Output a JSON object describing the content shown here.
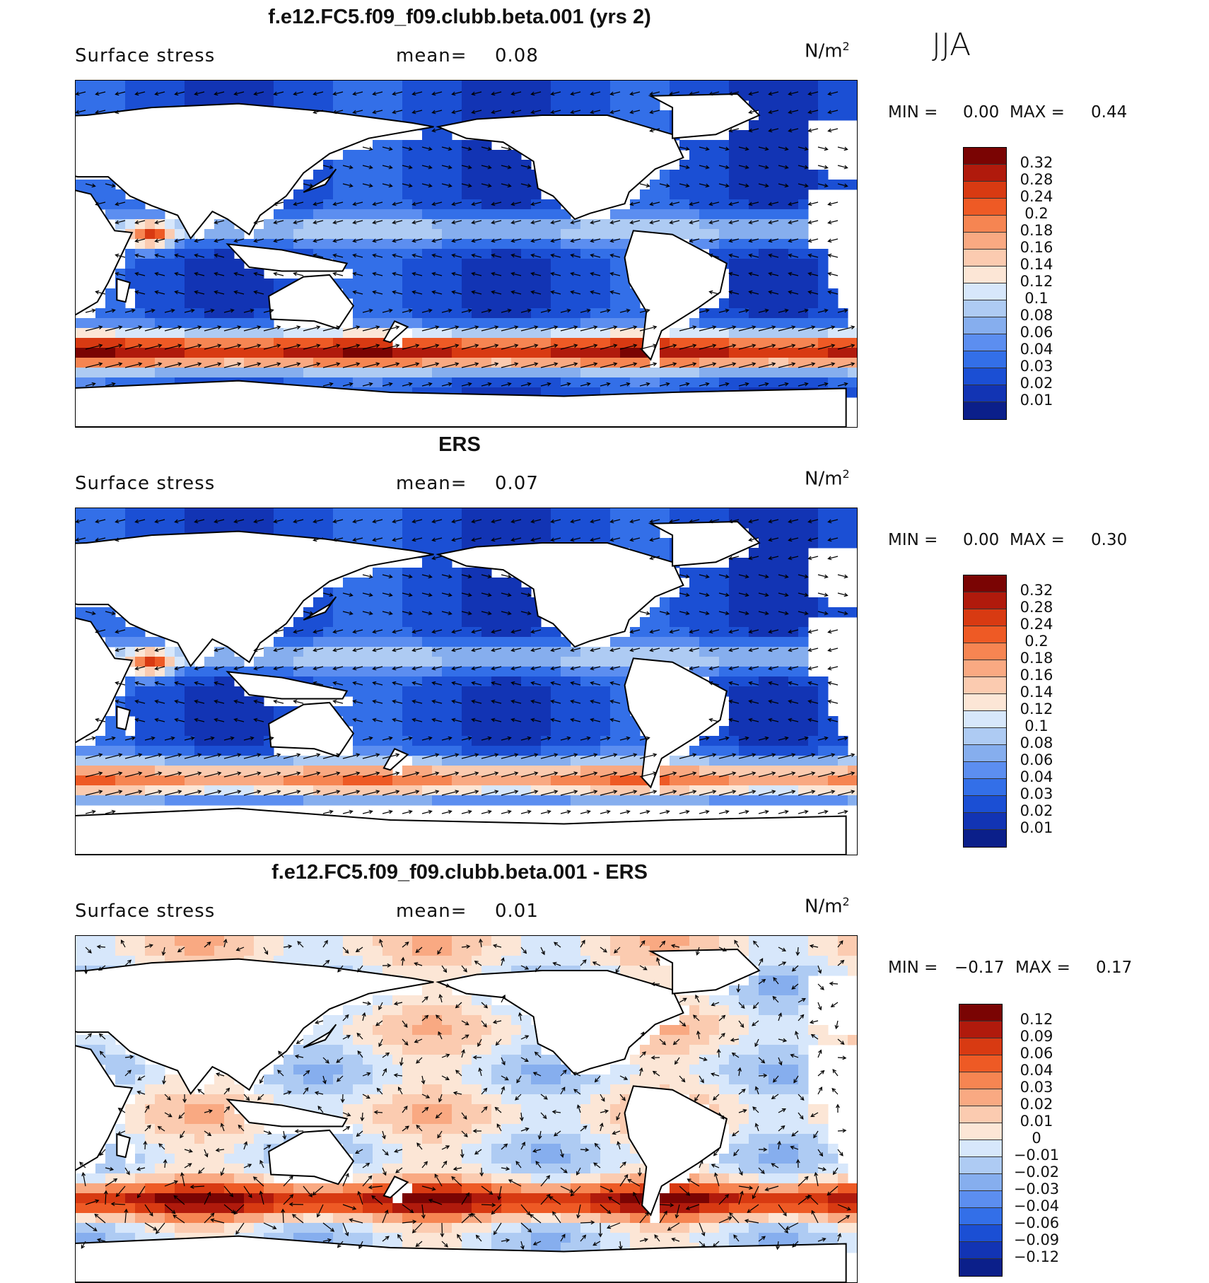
{
  "season": "JJA",
  "panels": [
    {
      "title": "f.e12.FC5.f09_f09.clubb.beta.001 (yrs 2)",
      "variable": "Surface stress",
      "mean_label": "mean=",
      "mean_value": "0.08",
      "units": "N/m",
      "units_sup": "2",
      "min_label": "MIN =",
      "min_value": "0.00",
      "max_label": "MAX =",
      "max_value": "0.44",
      "colorbar_ticks": [
        "0.32",
        "0.28",
        "0.24",
        "0.2",
        "0.18",
        "0.16",
        "0.14",
        "0.12",
        "0.1",
        "0.08",
        "0.06",
        "0.04",
        "0.03",
        "0.02",
        "0.01"
      ]
    },
    {
      "title": "ERS",
      "variable": "Surface stress",
      "mean_label": "mean=",
      "mean_value": "0.07",
      "units": "N/m",
      "units_sup": "2",
      "min_label": "MIN =",
      "min_value": "0.00",
      "max_label": "MAX =",
      "max_value": "0.30",
      "colorbar_ticks": [
        "0.32",
        "0.28",
        "0.24",
        "0.2",
        "0.18",
        "0.16",
        "0.14",
        "0.12",
        "0.1",
        "0.08",
        "0.06",
        "0.04",
        "0.03",
        "0.02",
        "0.01"
      ]
    },
    {
      "title": "f.e12.FC5.f09_f09.clubb.beta.001 - ERS",
      "variable": "Surface stress",
      "mean_label": "mean=",
      "mean_value": "0.01",
      "units": "N/m",
      "units_sup": "2",
      "min_label": "MIN =",
      "min_value": "−0.17",
      "max_label": "MAX =",
      "max_value": "0.17",
      "colorbar_ticks": [
        "0.12",
        "0.09",
        "0.06",
        "0.04",
        "0.03",
        "0.02",
        "0.01",
        "0",
        "−0.01",
        "−0.02",
        "−0.03",
        "−0.04",
        "−0.06",
        "−0.09",
        "−0.12"
      ]
    }
  ],
  "colors": {
    "seq_scale": [
      "#7a0403",
      "#b01a0c",
      "#d83a12",
      "#ee5a25",
      "#f68552",
      "#f9a982",
      "#fbcbb0",
      "#fce6d6",
      "#d7e7fb",
      "#aecbf3",
      "#86aeee",
      "#5c8ef0",
      "#336fe8",
      "#1b4fd4",
      "#1234b4",
      "#0b1f8a"
    ],
    "div_scale": [
      "#7a0403",
      "#b01a0c",
      "#d83a12",
      "#ee5a25",
      "#f68552",
      "#f9a982",
      "#fbcbb0",
      "#fce6d6",
      "#d7e7fb",
      "#aecbf3",
      "#86aeee",
      "#5c8ef0",
      "#336fe8",
      "#1b4fd4",
      "#1234b4",
      "#0b1f8a"
    ],
    "land": "#ffffff",
    "coast": "#000000"
  }
}
